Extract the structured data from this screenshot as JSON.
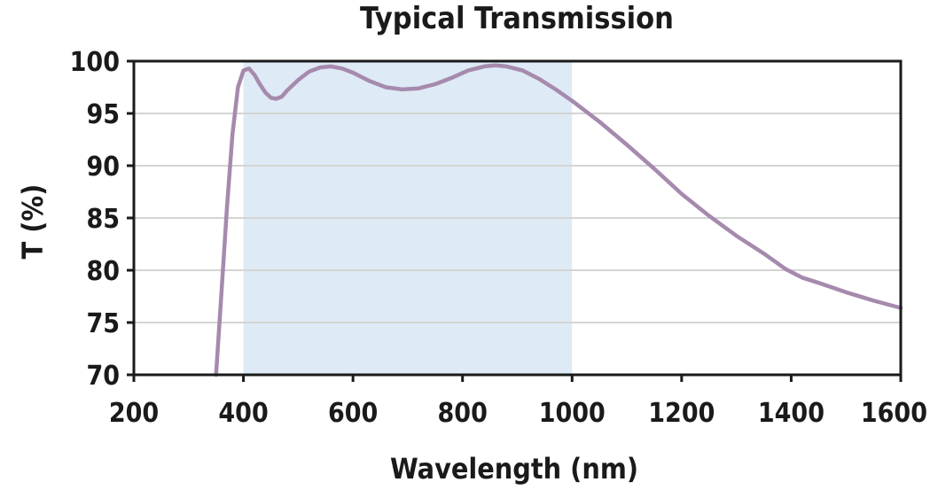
{
  "chart_data": {
    "type": "line",
    "title": "Typical Transmission",
    "xlabel": "Wavelength (nm)",
    "ylabel": "T (%)",
    "xlim": [
      200,
      1600
    ],
    "ylim": [
      70,
      100
    ],
    "x_ticks": [
      200,
      400,
      600,
      800,
      1000,
      1200,
      1400,
      1600
    ],
    "y_ticks": [
      70,
      75,
      80,
      85,
      90,
      95,
      100
    ],
    "grid": "horizontal",
    "legend": "none",
    "shaded_region": {
      "x_start": 400,
      "x_end": 1000,
      "color": "#deeaf5"
    },
    "series": [
      {
        "color": "#a68aae",
        "points": [
          [
            350,
            70
          ],
          [
            360,
            78
          ],
          [
            370,
            86
          ],
          [
            380,
            93
          ],
          [
            390,
            97.5
          ],
          [
            400,
            99.1
          ],
          [
            410,
            99.3
          ],
          [
            420,
            98.7
          ],
          [
            430,
            97.8
          ],
          [
            440,
            97.0
          ],
          [
            450,
            96.5
          ],
          [
            460,
            96.4
          ],
          [
            470,
            96.6
          ],
          [
            480,
            97.2
          ],
          [
            500,
            98.2
          ],
          [
            520,
            99.0
          ],
          [
            540,
            99.4
          ],
          [
            560,
            99.5
          ],
          [
            580,
            99.3
          ],
          [
            600,
            98.9
          ],
          [
            630,
            98.1
          ],
          [
            660,
            97.5
          ],
          [
            690,
            97.3
          ],
          [
            720,
            97.4
          ],
          [
            750,
            97.8
          ],
          [
            780,
            98.4
          ],
          [
            810,
            99.1
          ],
          [
            840,
            99.5
          ],
          [
            860,
            99.6
          ],
          [
            880,
            99.5
          ],
          [
            910,
            99.1
          ],
          [
            940,
            98.3
          ],
          [
            970,
            97.3
          ],
          [
            1000,
            96.2
          ],
          [
            1050,
            94.2
          ],
          [
            1100,
            92.0
          ],
          [
            1150,
            89.7
          ],
          [
            1200,
            87.3
          ],
          [
            1250,
            85.2
          ],
          [
            1300,
            83.3
          ],
          [
            1350,
            81.6
          ],
          [
            1390,
            80.1
          ],
          [
            1420,
            79.3
          ],
          [
            1450,
            78.8
          ],
          [
            1500,
            77.9
          ],
          [
            1550,
            77.1
          ],
          [
            1600,
            76.4
          ]
        ]
      }
    ]
  }
}
